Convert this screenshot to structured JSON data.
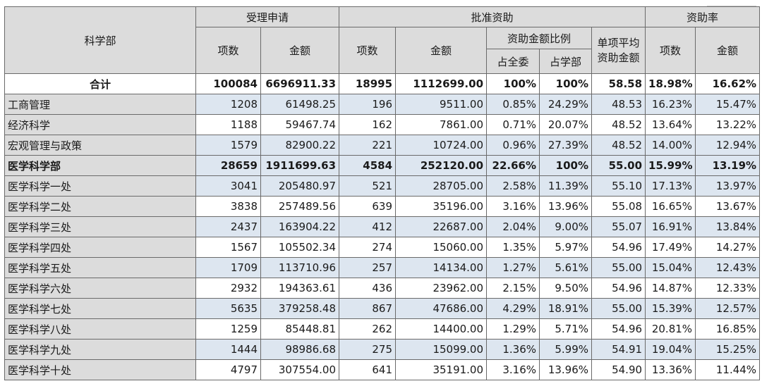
{
  "header": {
    "dept": "科学部",
    "received": "受理申请",
    "approved": "批准资助",
    "rate": "资助率",
    "count": "项数",
    "amount": "金额",
    "ratio": "资助金额比例",
    "avg": "单项平均资助金额",
    "share_all": "占全委",
    "share_dept": "占学部"
  },
  "rows": [
    {
      "name": "合计",
      "app_n": "100084",
      "app_amt": "6696911.33",
      "ok_n": "18995",
      "ok_amt": "1112699.00",
      "pct_all": "100%",
      "pct_dept": "100%",
      "avg": "58.58",
      "rate_n": "18.98%",
      "rate_amt": "16.62%"
    },
    {
      "name": "工商管理",
      "app_n": "1208",
      "app_amt": "61498.25",
      "ok_n": "196",
      "ok_amt": "9511.00",
      "pct_all": "0.85%",
      "pct_dept": "24.29%",
      "avg": "48.53",
      "rate_n": "16.23%",
      "rate_amt": "15.47%"
    },
    {
      "name": "经济科学",
      "app_n": "1188",
      "app_amt": "59467.74",
      "ok_n": "162",
      "ok_amt": "7861.00",
      "pct_all": "0.71%",
      "pct_dept": "20.07%",
      "avg": "48.52",
      "rate_n": "13.64%",
      "rate_amt": "13.22%"
    },
    {
      "name": "宏观管理与政策",
      "app_n": "1579",
      "app_amt": "82900.22",
      "ok_n": "221",
      "ok_amt": "10724.00",
      "pct_all": "0.96%",
      "pct_dept": "27.39%",
      "avg": "48.52",
      "rate_n": "14.00%",
      "rate_amt": "12.94%"
    },
    {
      "name": "医学科学部",
      "app_n": "28659",
      "app_amt": "1911699.63",
      "ok_n": "4584",
      "ok_amt": "252120.00",
      "pct_all": "22.66%",
      "pct_dept": "100%",
      "avg": "55.00",
      "rate_n": "15.99%",
      "rate_amt": "13.19%"
    },
    {
      "name": "医学科学一处",
      "app_n": "3041",
      "app_amt": "205480.97",
      "ok_n": "521",
      "ok_amt": "28705.00",
      "pct_all": "2.58%",
      "pct_dept": "11.39%",
      "avg": "55.10",
      "rate_n": "17.13%",
      "rate_amt": "13.97%"
    },
    {
      "name": "医学科学二处",
      "app_n": "3838",
      "app_amt": "257489.56",
      "ok_n": "639",
      "ok_amt": "35196.00",
      "pct_all": "3.16%",
      "pct_dept": "13.96%",
      "avg": "55.08",
      "rate_n": "16.65%",
      "rate_amt": "13.67%"
    },
    {
      "name": "医学科学三处",
      "app_n": "2437",
      "app_amt": "163904.22",
      "ok_n": "412",
      "ok_amt": "22687.00",
      "pct_all": "2.04%",
      "pct_dept": "9.00%",
      "avg": "55.07",
      "rate_n": "16.91%",
      "rate_amt": "13.84%"
    },
    {
      "name": "医学科学四处",
      "app_n": "1567",
      "app_amt": "105502.34",
      "ok_n": "274",
      "ok_amt": "15060.00",
      "pct_all": "1.35%",
      "pct_dept": "5.97%",
      "avg": "54.96",
      "rate_n": "17.49%",
      "rate_amt": "14.27%"
    },
    {
      "name": "医学科学五处",
      "app_n": "1709",
      "app_amt": "113710.96",
      "ok_n": "257",
      "ok_amt": "14134.00",
      "pct_all": "1.27%",
      "pct_dept": "5.61%",
      "avg": "55.00",
      "rate_n": "15.04%",
      "rate_amt": "12.43%"
    },
    {
      "name": "医学科学六处",
      "app_n": "2932",
      "app_amt": "194363.61",
      "ok_n": "436",
      "ok_amt": "23962.00",
      "pct_all": "2.15%",
      "pct_dept": "9.50%",
      "avg": "54.96",
      "rate_n": "14.87%",
      "rate_amt": "12.33%"
    },
    {
      "name": "医学科学七处",
      "app_n": "5635",
      "app_amt": "379258.48",
      "ok_n": "867",
      "ok_amt": "47686.00",
      "pct_all": "4.29%",
      "pct_dept": "18.91%",
      "avg": "55.00",
      "rate_n": "15.39%",
      "rate_amt": "12.57%"
    },
    {
      "name": "医学科学八处",
      "app_n": "1259",
      "app_amt": "85448.81",
      "ok_n": "262",
      "ok_amt": "14400.00",
      "pct_all": "1.29%",
      "pct_dept": "5.71%",
      "avg": "54.96",
      "rate_n": "20.81%",
      "rate_amt": "16.85%"
    },
    {
      "name": "医学科学九处",
      "app_n": "1444",
      "app_amt": "98986.68",
      "ok_n": "275",
      "ok_amt": "15099.00",
      "pct_all": "1.36%",
      "pct_dept": "5.99%",
      "avg": "54.91",
      "rate_n": "19.04%",
      "rate_amt": "15.25%"
    },
    {
      "name": "医学科学十处",
      "app_n": "4797",
      "app_amt": "307554.00",
      "ok_n": "641",
      "ok_amt": "35191.00",
      "pct_all": "3.16%",
      "pct_dept": "13.96%",
      "avg": "54.90",
      "rate_n": "13.36%",
      "rate_amt": "11.44%"
    }
  ],
  "colors": {
    "header_bg": "#dcdcdc",
    "row_shade": "#dde6f0",
    "border": "#6a6a6a"
  }
}
